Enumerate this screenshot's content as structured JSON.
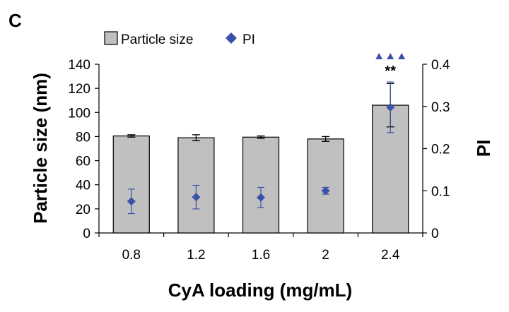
{
  "panel_label": "C",
  "colors": {
    "bar_fill": "#c0c0c0",
    "bar_stroke": "#000000",
    "pi_marker": "#3a52a8",
    "axis": "#000000"
  },
  "legend": {
    "bar_label": "Particle size",
    "marker_label": "PI"
  },
  "annotation": {
    "stars": "**",
    "triangles": "▲▲▲",
    "category": "2.4"
  },
  "chart_data": {
    "type": "bar",
    "title": "",
    "xlabel": "CyA loading (mg/mL)",
    "ylabel": "Particle size (nm)",
    "y2label": "PI",
    "categories": [
      "0.8",
      "1.2",
      "1.6",
      "2",
      "2.4"
    ],
    "ylim": [
      0,
      140
    ],
    "yticks": [
      "0",
      "20",
      "40",
      "60",
      "80",
      "100",
      "120",
      "140"
    ],
    "y2lim": [
      0,
      0.4
    ],
    "y2ticks": [
      "0",
      "0.1",
      "0.2",
      "0.3",
      "0.4"
    ],
    "series": [
      {
        "name": "Particle size",
        "kind": "bar",
        "axis": "left",
        "values": [
          80.5,
          79,
          79.5,
          78,
          106
        ],
        "errors": [
          1,
          2.5,
          1,
          2,
          18
        ]
      },
      {
        "name": "PI",
        "kind": "scatter",
        "axis": "right",
        "values": [
          0.075,
          0.085,
          0.084,
          0.1,
          0.298
        ],
        "errors": [
          0.029,
          0.028,
          0.024,
          0.008,
          0.06
        ]
      }
    ]
  }
}
